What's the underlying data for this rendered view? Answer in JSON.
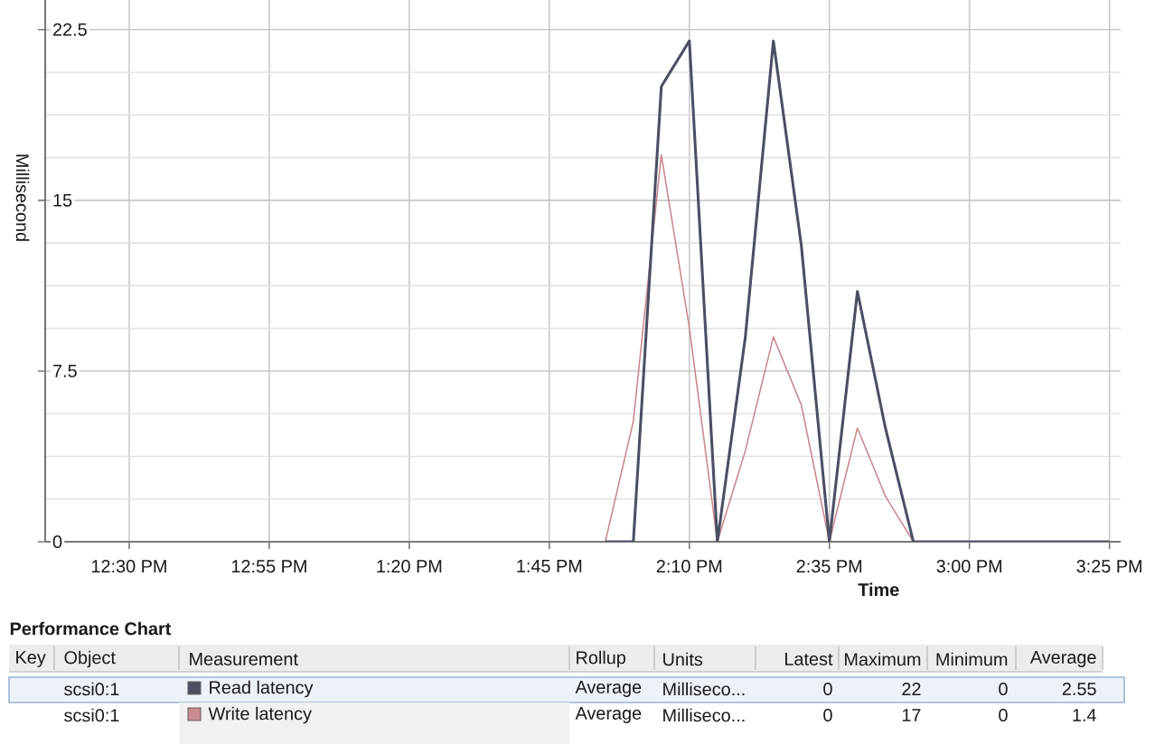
{
  "chart_data": {
    "type": "line",
    "xlabel": "Time",
    "ylabel": "Millisecond",
    "legend_title": "Performance Chart",
    "x": [
      13.9167,
      14.0,
      14.0833,
      14.1667,
      14.25,
      14.3333,
      14.4167,
      14.5,
      14.5833,
      14.6667,
      14.75,
      14.8333,
      14.9167,
      15.0,
      15.0833,
      15.1667,
      15.25,
      15.3333,
      15.4167
    ],
    "series": [
      {
        "name": "Read latency",
        "color": "#4a4f63",
        "values": [
          0,
          0,
          20,
          22,
          0,
          9,
          22,
          13,
          0,
          11,
          5,
          0,
          0,
          0,
          0,
          0,
          0,
          0,
          0
        ]
      },
      {
        "name": "Write latency",
        "color": "#c98a90",
        "values": [
          0,
          5.3,
          17,
          9.4,
          0,
          4,
          9,
          6,
          0,
          5,
          2,
          0,
          0,
          0,
          0,
          0,
          0,
          0,
          0
        ]
      }
    ],
    "xlim": [
      12.25,
      15.45
    ],
    "xticks": [
      {
        "value": 12.5,
        "label": "12:30 PM"
      },
      {
        "value": 12.9167,
        "label": "12:55 PM"
      },
      {
        "value": 13.3333,
        "label": "1:20 PM"
      },
      {
        "value": 13.75,
        "label": "1:45 PM"
      },
      {
        "value": 14.1667,
        "label": "2:10 PM"
      },
      {
        "value": 14.5833,
        "label": "2:35 PM"
      },
      {
        "value": 15.0,
        "label": "3:00 PM"
      },
      {
        "value": 15.4167,
        "label": "3:25 PM"
      }
    ],
    "ylim": [
      0,
      23.8
    ],
    "yticks": [
      0,
      7.5,
      15,
      22.5
    ],
    "grid": true,
    "legend": "bottom",
    "line_style": "solid",
    "annotations": [
      "Key",
      "Object",
      "Measurement",
      "Rollup",
      "Units",
      "Latest",
      "Maximum",
      "Minimum",
      "Average",
      "scsi0:1",
      "Average",
      "Milliseco...",
      "0",
      "22",
      "0",
      "2.55",
      "scsi0:1",
      "Average",
      "Milliseco...",
      "0",
      "17",
      "0",
      "1.4"
    ]
  }
}
